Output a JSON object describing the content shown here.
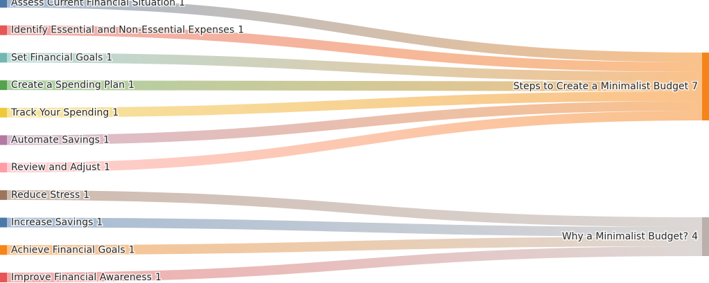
{
  "chart_data": {
    "type": "sankey",
    "nodes": [
      {
        "name": "Assess Current Financial Situation",
        "value": 1,
        "color": "#4c78a8"
      },
      {
        "name": "Identify Essential and Non-Essential Expenses",
        "value": 1,
        "color": "#e45756"
      },
      {
        "name": "Set Financial Goals",
        "value": 1,
        "color": "#72b7b2"
      },
      {
        "name": "Create a Spending Plan",
        "value": 1,
        "color": "#54a24b"
      },
      {
        "name": "Track Your Spending",
        "value": 1,
        "color": "#eeca3b"
      },
      {
        "name": "Automate Savings",
        "value": 1,
        "color": "#b279a2"
      },
      {
        "name": "Review and Adjust",
        "value": 1,
        "color": "#ff9da6"
      },
      {
        "name": "Reduce Stress",
        "value": 1,
        "color": "#9d755d"
      },
      {
        "name": "Increase Savings",
        "value": 1,
        "color": "#4c78a8"
      },
      {
        "name": "Achieve Financial Goals",
        "value": 1,
        "color": "#f58518"
      },
      {
        "name": "Improve Financial Awareness",
        "value": 1,
        "color": "#e45756"
      },
      {
        "name": "Steps to Create a Minimalist Budget",
        "value": 7,
        "color": "#f58518"
      },
      {
        "name": "Why a Minimalist Budget?",
        "value": 4,
        "color": "#bab0ac"
      }
    ],
    "links": [
      {
        "source": 0,
        "target": 11,
        "value": 1
      },
      {
        "source": 1,
        "target": 11,
        "value": 1
      },
      {
        "source": 2,
        "target": 11,
        "value": 1
      },
      {
        "source": 3,
        "target": 11,
        "value": 1
      },
      {
        "source": 4,
        "target": 11,
        "value": 1
      },
      {
        "source": 5,
        "target": 11,
        "value": 1
      },
      {
        "source": 6,
        "target": 11,
        "value": 1
      },
      {
        "source": 7,
        "target": 12,
        "value": 1
      },
      {
        "source": 8,
        "target": 12,
        "value": 1
      },
      {
        "source": 9,
        "target": 12,
        "value": 1
      },
      {
        "source": 10,
        "target": 12,
        "value": 1
      }
    ]
  }
}
